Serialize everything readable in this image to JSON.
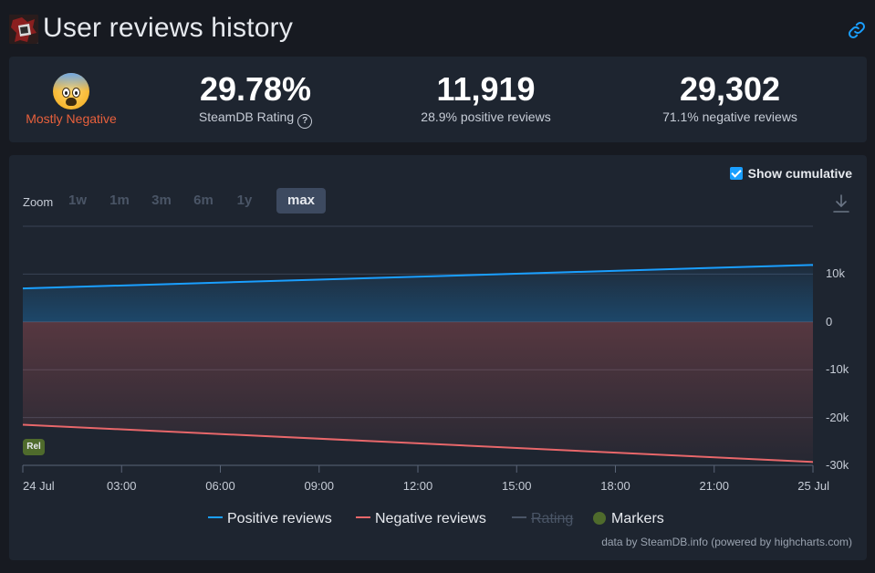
{
  "page": {
    "title": "User reviews history",
    "link_icon": "link-icon",
    "game_icon": "game-capsule-icon"
  },
  "summary": {
    "sentiment_emoji": "fearful-face-emoji",
    "sentiment_label": "Mostly Negative",
    "rating_value": "29.78%",
    "rating_label": "SteamDB Rating",
    "positive_count": "11,919",
    "positive_label": "28.9% positive reviews",
    "negative_count": "29,302",
    "negative_label": "71.1% negative reviews"
  },
  "chart_controls": {
    "show_cumulative_label": "Show cumulative",
    "show_cumulative_checked": true,
    "zoom_label": "Zoom",
    "zoom_options": [
      "1w",
      "1m",
      "3m",
      "6m",
      "1y",
      "max"
    ],
    "zoom_active": "max"
  },
  "chart_data": {
    "type": "line",
    "x_labels": [
      "24 Jul",
      "03:00",
      "06:00",
      "09:00",
      "12:00",
      "15:00",
      "18:00",
      "21:00",
      "25 Jul"
    ],
    "y_ticks": [
      "10k",
      "0",
      "-10k",
      "-20k",
      "-30k"
    ],
    "ylim": [
      -30000,
      20000
    ],
    "series": [
      {
        "name": "Positive reviews",
        "color": "#1a9fff",
        "start": 7000,
        "end": 11919,
        "visible": true
      },
      {
        "name": "Negative reviews",
        "color": "#e8676a",
        "start": -21500,
        "end": -29302,
        "visible": true
      },
      {
        "name": "Rating",
        "color": "#4a5566",
        "visible": false
      },
      {
        "name": "Markers",
        "color": "#4f6b2c",
        "visible": true
      }
    ],
    "markers": [
      {
        "label": "Rel",
        "x": "24 Jul"
      }
    ]
  },
  "credits": "data by SteamDB.info (powered by highcharts.com)",
  "colors": {
    "positive": "#1a9fff",
    "negative": "#e8676a",
    "marker": "#4f6b2c",
    "accent": "#1a9fff"
  }
}
